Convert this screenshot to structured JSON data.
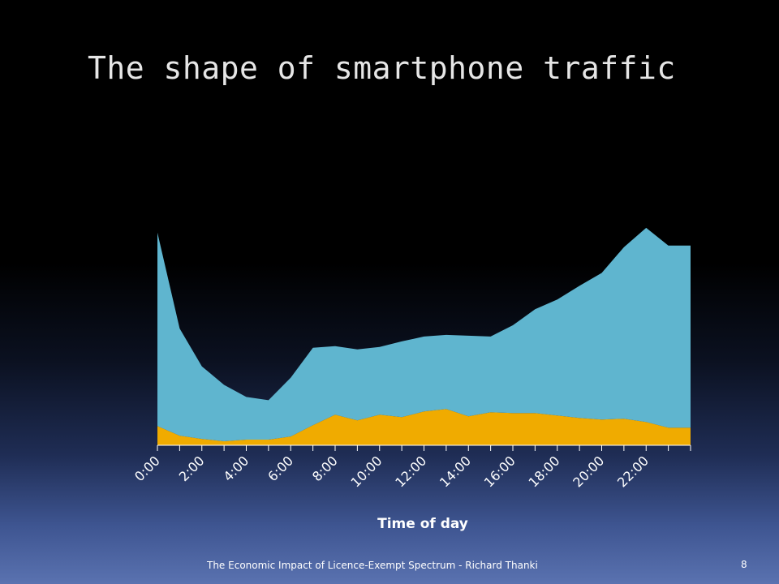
{
  "slide": {
    "title": "The shape of smartphone traffic",
    "footer": "The Economic Impact of Licence-Exempt Spectrum - Richard Thanki",
    "page_number": "8"
  },
  "chart_data": {
    "type": "area",
    "title": "",
    "xlabel": "Time of day",
    "ylabel": "",
    "stacked": true,
    "grid": false,
    "legend": "none",
    "x_tick_labels": [
      "0:00",
      "2:00",
      "4:00",
      "6:00",
      "8:00",
      "10:00",
      "12:00",
      "14:00",
      "16:00",
      "18:00",
      "20:00",
      "22:00"
    ],
    "x": [
      "0:00",
      "1:00",
      "2:00",
      "3:00",
      "4:00",
      "5:00",
      "6:00",
      "7:00",
      "8:00",
      "9:00",
      "10:00",
      "11:00",
      "12:00",
      "13:00",
      "14:00",
      "15:00",
      "16:00",
      "17:00",
      "18:00",
      "19:00",
      "20:00",
      "21:00",
      "22:00",
      "23:00",
      "24:00"
    ],
    "ylim": [
      0,
      290
    ],
    "series": [
      {
        "color": "#f0ab00",
        "values": [
          24,
          12,
          8,
          5,
          7,
          7,
          11,
          25,
          38,
          31,
          38,
          35,
          42,
          45,
          36,
          41,
          40,
          40,
          37,
          34,
          32,
          33,
          29,
          22,
          22
        ]
      },
      {
        "color": "#5fb5cf",
        "values": [
          240,
          133,
          90,
          70,
          53,
          49,
          73,
          96,
          85,
          88,
          84,
          94,
          93,
          92,
          100,
          94,
          109,
          129,
          144,
          164,
          182,
          213,
          241,
          226,
          226
        ]
      }
    ]
  }
}
